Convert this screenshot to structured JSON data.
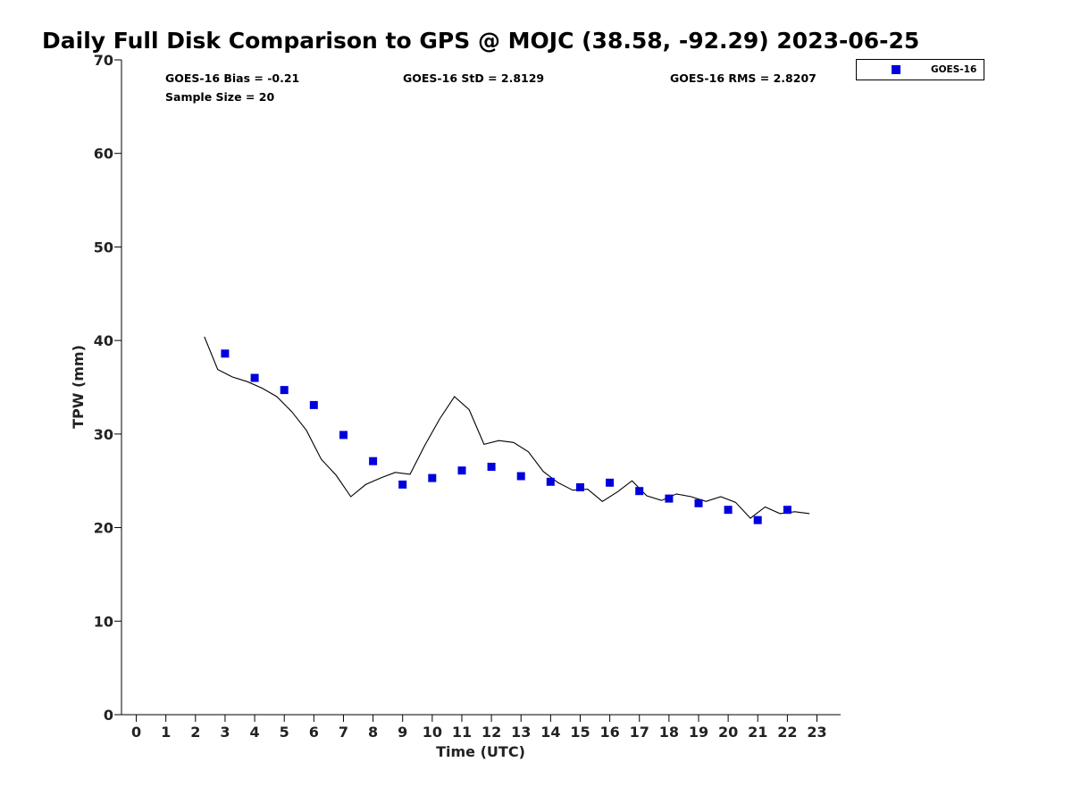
{
  "chart_data": {
    "type": "scatter",
    "title": "Daily Full Disk Comparison to GPS @ MOJC (38.58, -92.29) 2023-06-25",
    "xlabel": "Time (UTC)",
    "ylabel": "TPW (mm)",
    "xlim": [
      -0.5,
      23.8
    ],
    "ylim": [
      0,
      70
    ],
    "x_ticks": [
      "0",
      "1",
      "2",
      "3",
      "4",
      "5",
      "6",
      "7",
      "8",
      "9",
      "10",
      "11",
      "12",
      "13",
      "14",
      "15",
      "16",
      "17",
      "18",
      "19",
      "20",
      "21",
      "22",
      "23"
    ],
    "y_ticks": [
      "0",
      "10",
      "20",
      "30",
      "40",
      "50",
      "60",
      "70"
    ],
    "stats": {
      "bias": "GOES-16 Bias = -0.21",
      "std": "GOES-16 StD = 2.8129",
      "rms": "GOES-16 RMS = 2.8207",
      "sample_size": "Sample Size = 20"
    },
    "legend": {
      "label": "GOES-16",
      "position": "top-right",
      "color": "#0000dd"
    },
    "series": [
      {
        "name": "GOES-16",
        "kind": "scatter",
        "color": "#0000dd",
        "points": [
          [
            3,
            38.6
          ],
          [
            4,
            36.0
          ],
          [
            5,
            34.7
          ],
          [
            6,
            33.1
          ],
          [
            7,
            29.9
          ],
          [
            8,
            27.1
          ],
          [
            9,
            24.6
          ],
          [
            10,
            25.3
          ],
          [
            11,
            26.1
          ],
          [
            12,
            26.5
          ],
          [
            13,
            25.5
          ],
          [
            14,
            24.9
          ],
          [
            15,
            24.3
          ],
          [
            16,
            24.8
          ],
          [
            17,
            23.9
          ],
          [
            18,
            23.1
          ],
          [
            19,
            22.6
          ],
          [
            20,
            21.9
          ],
          [
            21,
            20.8
          ],
          [
            22,
            21.9
          ]
        ]
      },
      {
        "name": "GPS",
        "kind": "line",
        "color": "#000000",
        "points": [
          [
            2.3,
            40.4
          ],
          [
            2.75,
            36.9
          ],
          [
            3.25,
            36.1
          ],
          [
            3.75,
            35.6
          ],
          [
            4.25,
            34.9
          ],
          [
            4.75,
            34.0
          ],
          [
            5.25,
            32.4
          ],
          [
            5.75,
            30.4
          ],
          [
            6.25,
            27.3
          ],
          [
            6.75,
            25.6
          ],
          [
            7.25,
            23.3
          ],
          [
            7.75,
            24.6
          ],
          [
            8.25,
            25.3
          ],
          [
            8.75,
            25.9
          ],
          [
            9.25,
            25.7
          ],
          [
            9.75,
            28.8
          ],
          [
            10.25,
            31.6
          ],
          [
            10.75,
            34.0
          ],
          [
            11.25,
            32.6
          ],
          [
            11.75,
            28.9
          ],
          [
            12.25,
            29.3
          ],
          [
            12.75,
            29.1
          ],
          [
            13.25,
            28.1
          ],
          [
            13.75,
            26.0
          ],
          [
            14.25,
            24.8
          ],
          [
            14.75,
            24.0
          ],
          [
            15.25,
            24.1
          ],
          [
            15.75,
            22.8
          ],
          [
            16.25,
            23.8
          ],
          [
            16.75,
            25.0
          ],
          [
            17.25,
            23.4
          ],
          [
            17.75,
            22.9
          ],
          [
            18.25,
            23.6
          ],
          [
            18.75,
            23.3
          ],
          [
            19.25,
            22.8
          ],
          [
            19.75,
            23.3
          ],
          [
            20.25,
            22.7
          ],
          [
            20.75,
            21.0
          ],
          [
            21.25,
            22.2
          ],
          [
            21.75,
            21.5
          ],
          [
            22.25,
            21.7
          ],
          [
            22.75,
            21.5
          ]
        ]
      }
    ]
  }
}
